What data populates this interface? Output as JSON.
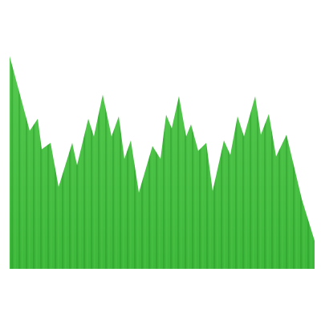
{
  "image": {
    "subject": "green-paper-grass-divider",
    "colors": {
      "background": "#ffffff",
      "grass_base": "#3db83a",
      "grass_dark": "#2e9f2e",
      "grass_light": "#55c94f",
      "stripe": "#2a9a2b"
    }
  }
}
